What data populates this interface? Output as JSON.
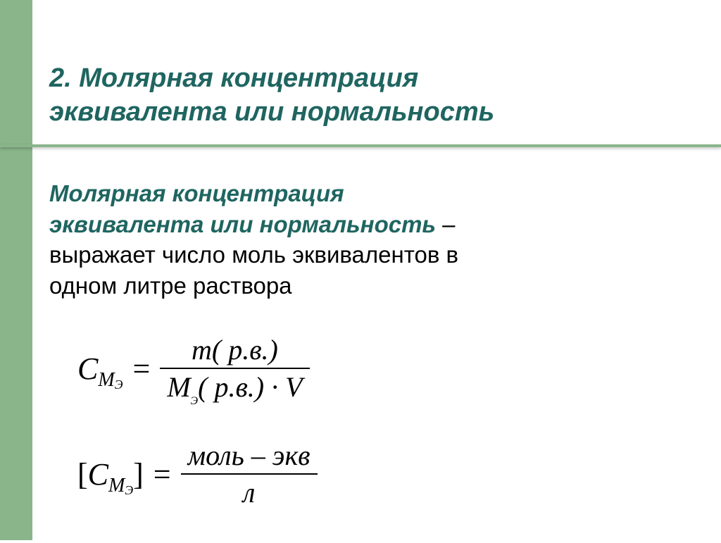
{
  "colors": {
    "sidebar": "#8ab58b",
    "underline": "#8ab58b",
    "title": "#1f6560",
    "term": "#1f6560",
    "body": "#000000",
    "background": "#ffffff"
  },
  "title_line1": "2. Молярная концентрация",
  "title_line2": "эквивалента или нормальность",
  "body": {
    "term_line1": "Молярная концентрация",
    "term_line2": "эквивалента или нормальность",
    "rest_line2": " –",
    "line3": "выражает число моль эквивалентов в",
    "line4": "одном литре раствора"
  },
  "formula1": {
    "lhs_C": "C",
    "lhs_M": "M",
    "lhs_sub": "Э",
    "eq": "=",
    "num": "m( р.в.)",
    "den_M": "M",
    "den_sub": "Э",
    "den_rest": "( р.в.) · V"
  },
  "formula2": {
    "lhs_open": "[",
    "lhs_C": "C",
    "lhs_M": "M",
    "lhs_sub": "Э",
    "lhs_close": "]",
    "eq": "=",
    "num": "моль – экв",
    "den": "л"
  }
}
